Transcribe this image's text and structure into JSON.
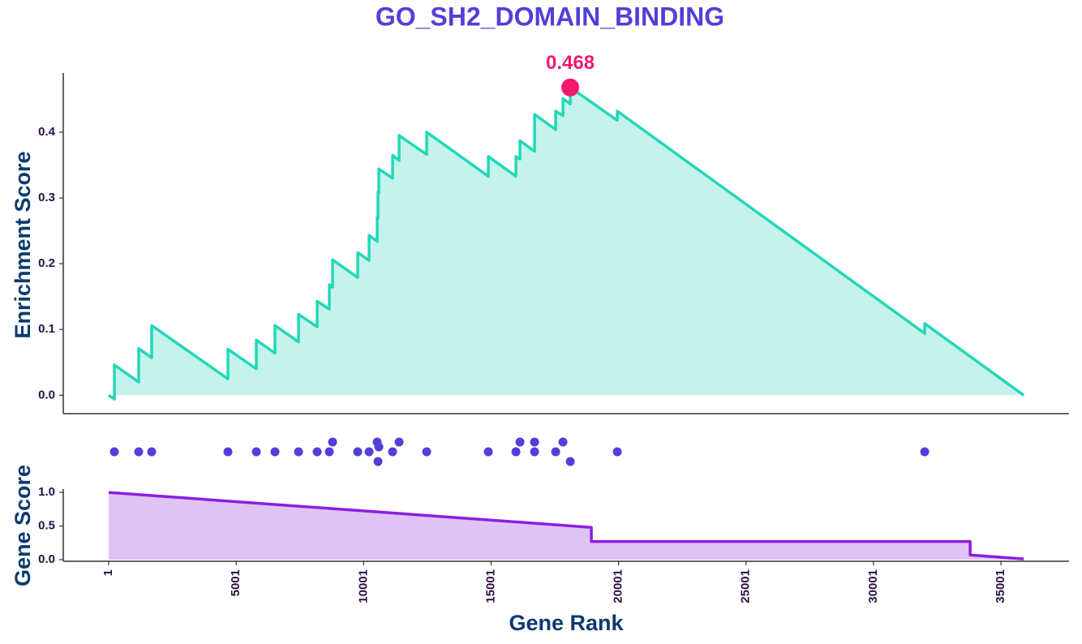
{
  "chart_data": {
    "type": "gsea",
    "title": "GO_SH2_DOMAIN_BINDING",
    "es_axis_label": "Enrichment Score",
    "gene_axis_label": "Gene Score",
    "x_axis_label": "Gene Rank",
    "xlim": [
      -1781,
      37672
    ],
    "xticks": [
      1,
      5001,
      10001,
      15001,
      20001,
      25001,
      30001,
      35001
    ],
    "es_ylim": [
      -0.028,
      0.49
    ],
    "es_yticks": [
      {
        "value": 0,
        "label": "0.0"
      },
      0.1,
      0.2,
      0.3,
      0.4
    ],
    "gene_ylim": [
      -0.024,
      1.05
    ],
    "gene_yticks": [
      {
        "value": 0,
        "label": "0.0"
      },
      0.5,
      {
        "value": 1,
        "label": "1.0"
      }
    ],
    "es": {
      "color": "#22d8b8",
      "fill": "#c5f3ec",
      "x": [
        1,
        224,
        224,
        1178,
        1178,
        1687,
        1687,
        4678,
        4678,
        5792,
        5792,
        6524,
        6524,
        7447,
        7447,
        8179,
        8179,
        8656,
        8656,
        8783,
        8783,
        9770,
        9770,
        10215,
        10215,
        10533,
        10533,
        10565,
        10565,
        10597,
        10597,
        11138,
        11138,
        11393,
        11393,
        12475,
        12475,
        14893,
        14893,
        15975,
        15975,
        16134,
        16134,
        16707,
        16707,
        17534,
        17534,
        17821,
        17821,
        18107,
        18107,
        19952,
        19952,
        32011,
        32011,
        35895
      ],
      "values": [
        0.0,
        -0.006,
        0.046,
        0.02,
        0.071,
        0.057,
        0.106,
        0.025,
        0.07,
        0.04,
        0.084,
        0.064,
        0.106,
        0.081,
        0.123,
        0.104,
        0.143,
        0.131,
        0.168,
        0.164,
        0.206,
        0.179,
        0.217,
        0.205,
        0.243,
        0.234,
        0.27,
        0.269,
        0.309,
        0.308,
        0.344,
        0.33,
        0.365,
        0.357,
        0.395,
        0.366,
        0.4,
        0.333,
        0.363,
        0.333,
        0.363,
        0.359,
        0.387,
        0.371,
        0.427,
        0.404,
        0.432,
        0.425,
        0.451,
        0.443,
        0.468,
        0.418,
        0.432,
        0.094,
        0.109,
        0.0
      ]
    },
    "peak": {
      "x": 18107,
      "value": 0.468,
      "color": "#f0196b"
    },
    "hits": {
      "color": "#5040d8",
      "x": [
        224,
        1178,
        1687,
        4678,
        5792,
        6524,
        7447,
        8179,
        8656,
        8783,
        9770,
        10215,
        10533,
        10565,
        10597,
        11138,
        11393,
        12475,
        14893,
        15975,
        16134,
        16707,
        16707,
        17534,
        17821,
        18107,
        19952,
        32011
      ]
    },
    "gene_score": {
      "color": "#8c1ee0",
      "fill": "#dfc3f5",
      "x": [
        1,
        18934,
        18934,
        33794,
        33794,
        35895
      ],
      "values": [
        1.0,
        0.48,
        0.27,
        0.27,
        0.07,
        0.01
      ]
    }
  }
}
